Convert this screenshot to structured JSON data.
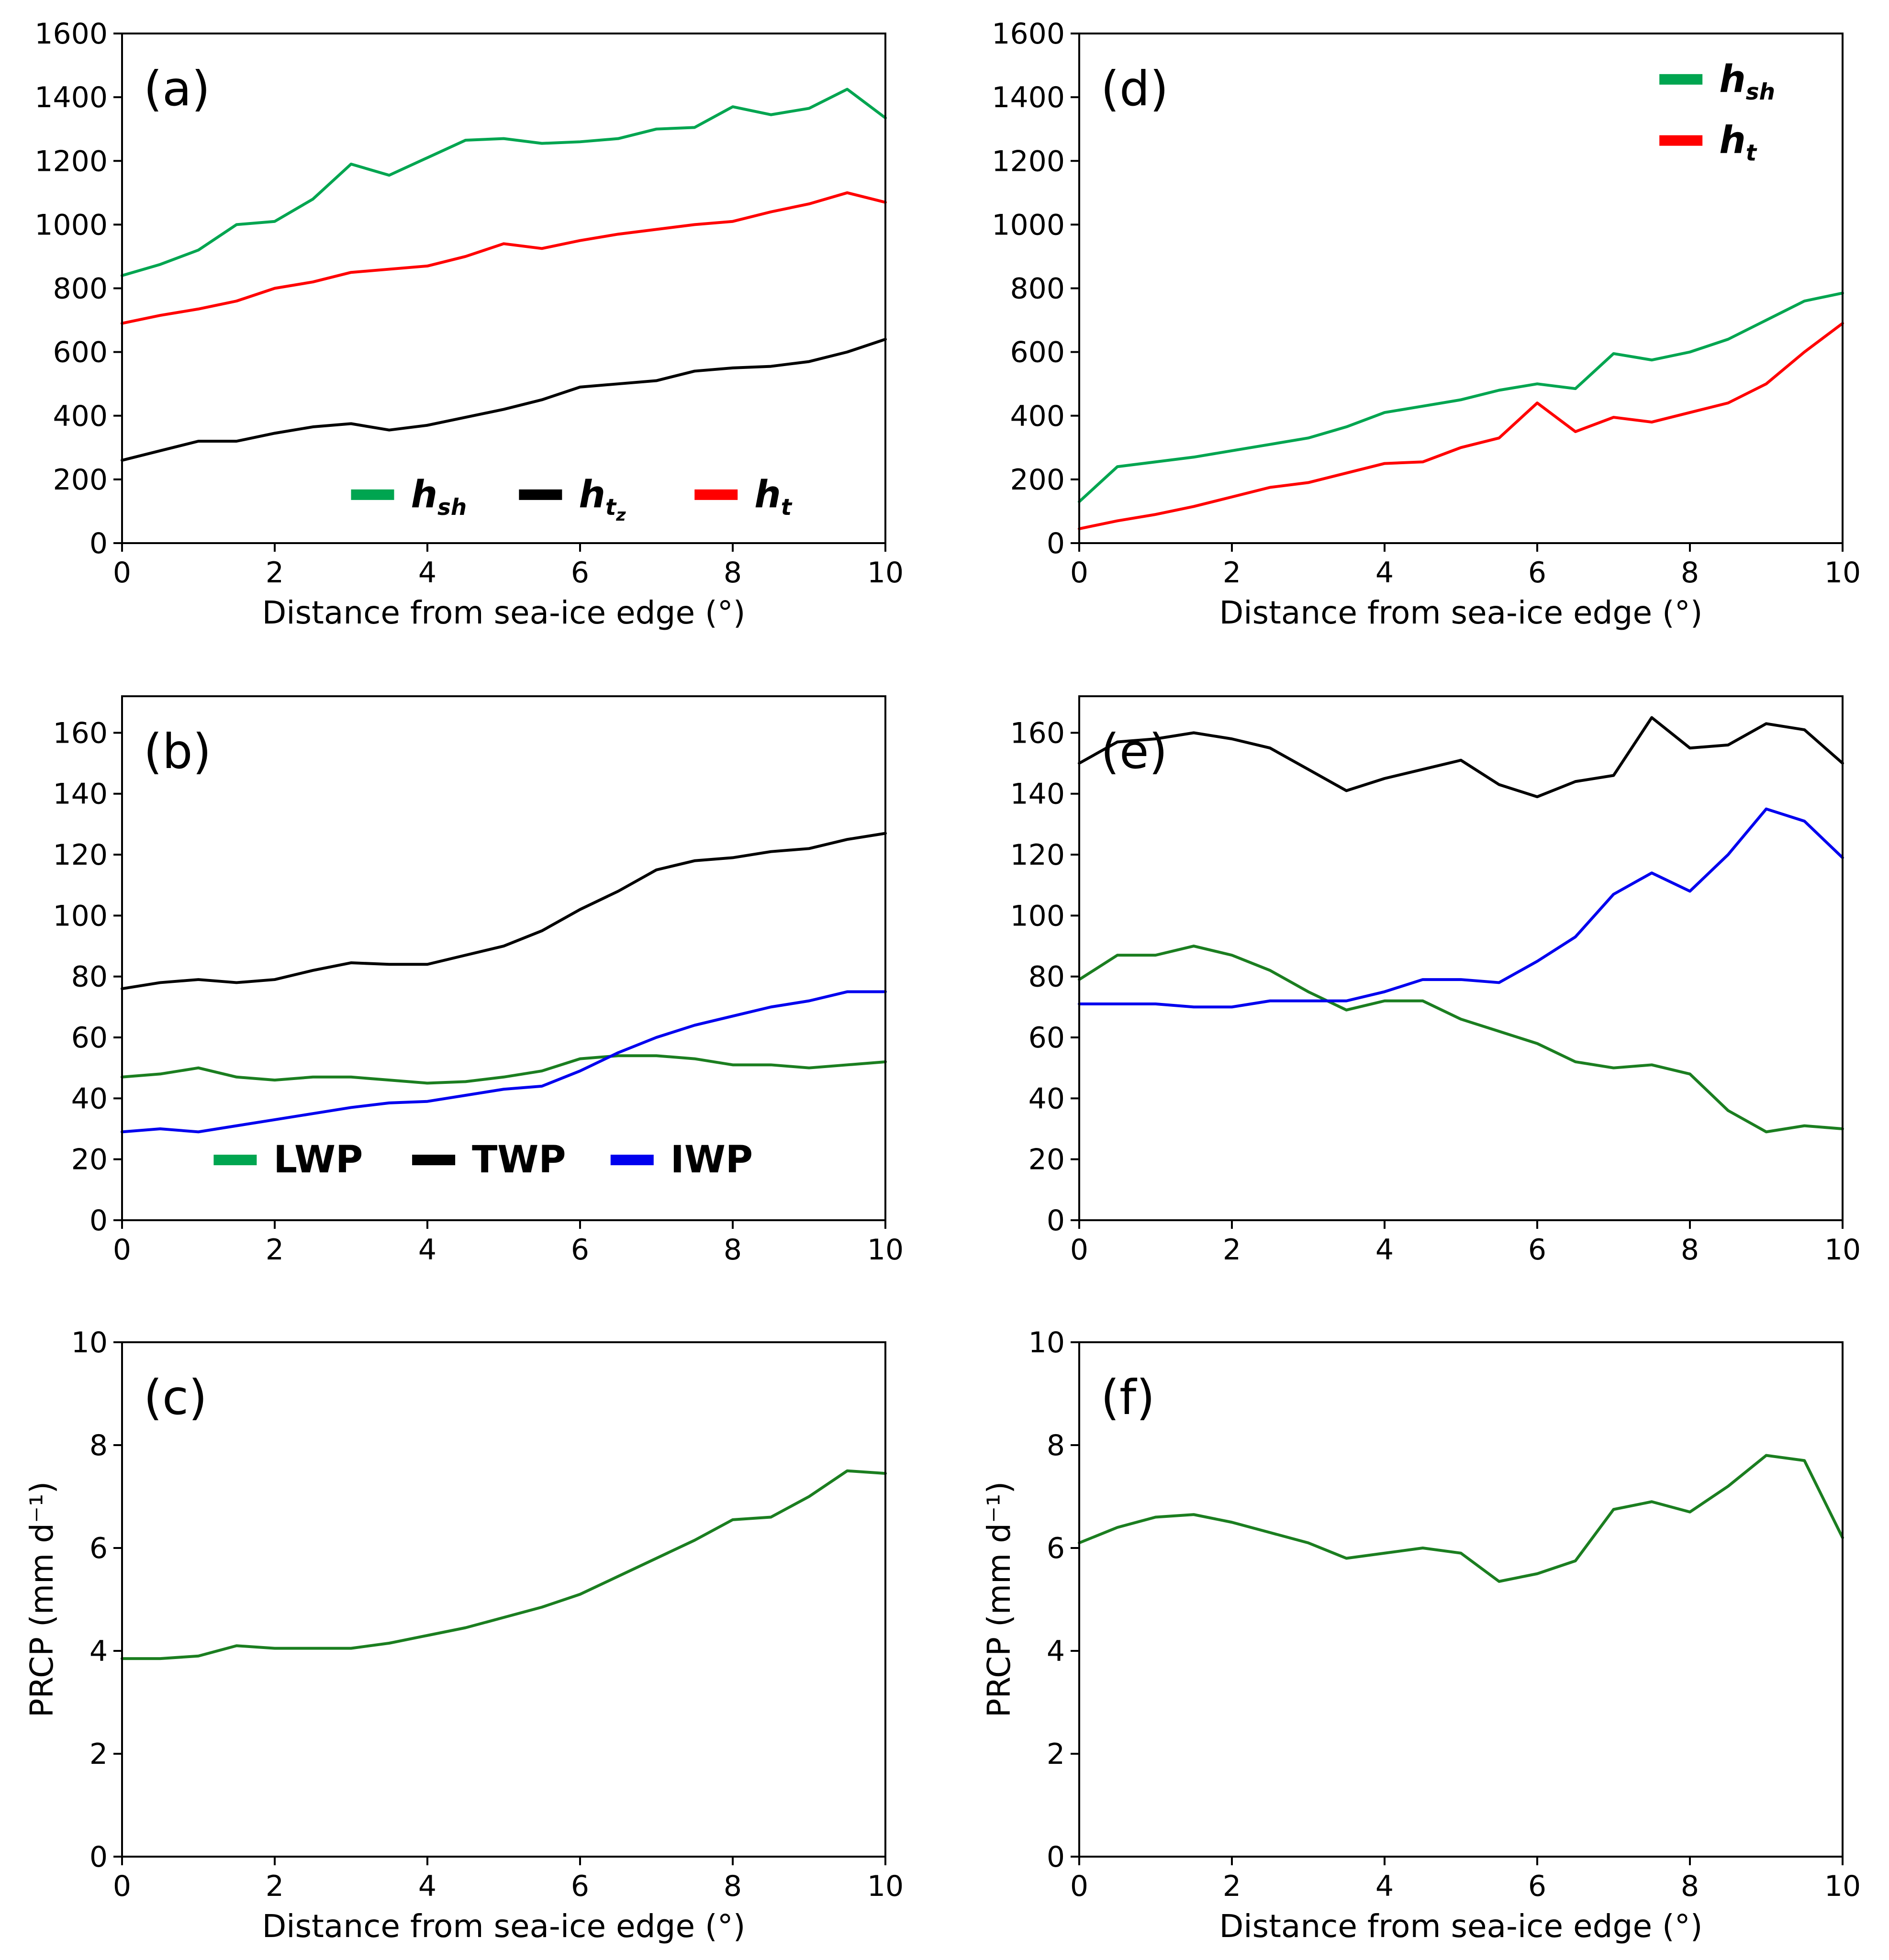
{
  "style": {
    "background": "#ffffff",
    "frame_color": "#000000",
    "tick_color": "#000000",
    "green_bright": "#00A550",
    "green_dark": "#1B7E20",
    "red": "#FF0000",
    "black": "#000000",
    "blue": "#0000EE"
  },
  "chart_data": {
    "type": "line",
    "x": [
      0,
      0.5,
      1,
      1.5,
      2,
      2.5,
      3,
      3.5,
      4,
      4.5,
      5,
      5.5,
      6,
      6.5,
      7,
      7.5,
      8,
      8.5,
      9,
      9.5,
      10
    ],
    "shared_xlabel": "Distance from sea-ice edge (°)",
    "panels": [
      {
        "id": "a",
        "letter": "(a)",
        "xlim": [
          0,
          10
        ],
        "xticks": [
          0,
          2,
          4,
          6,
          8,
          10
        ],
        "ylim": [
          0,
          1600
        ],
        "yticks": [
          0,
          200,
          400,
          600,
          800,
          1000,
          1200,
          1400,
          1600
        ],
        "xlabel": "Distance from sea-ice edge (°)",
        "ylabel": "",
        "series": [
          {
            "name": "h_sh",
            "tex": "h_sh",
            "color": "#00A550",
            "y": [
              840,
              875,
              920,
              1000,
              1010,
              1080,
              1190,
              1155,
              1210,
              1265,
              1270,
              1255,
              1260,
              1270,
              1300,
              1305,
              1370,
              1345,
              1365,
              1425,
              1335
            ]
          },
          {
            "name": "h_t_z",
            "tex": "h_t_z",
            "color": "#000000",
            "y": [
              260,
              290,
              320,
              320,
              345,
              365,
              375,
              355,
              370,
              395,
              420,
              450,
              490,
              500,
              510,
              540,
              550,
              555,
              570,
              600,
              640
            ]
          },
          {
            "name": "h_t",
            "tex": "h_t",
            "color": "#FF0000",
            "y": [
              690,
              715,
              735,
              760,
              800,
              820,
              850,
              860,
              870,
              900,
              940,
              925,
              950,
              970,
              985,
              1000,
              1010,
              1040,
              1065,
              1100,
              1070
            ]
          }
        ],
        "legend": {
          "layout": "row",
          "yfrac": 0.095,
          "xfrac": [
            0.3,
            0.52,
            0.75
          ],
          "entries": [
            {
              "tex": "h_sh",
              "color": "#00A550"
            },
            {
              "tex": "h_t_z",
              "color": "#000000"
            },
            {
              "tex": "h_t",
              "color": "#FF0000"
            }
          ]
        }
      },
      {
        "id": "d",
        "letter": "(d)",
        "xlim": [
          0,
          10
        ],
        "xticks": [
          0,
          2,
          4,
          6,
          8,
          10
        ],
        "ylim": [
          0,
          1600
        ],
        "yticks": [
          0,
          200,
          400,
          600,
          800,
          1000,
          1200,
          1400,
          1600
        ],
        "xlabel": "Distance from sea-ice edge (°)",
        "ylabel": "",
        "series": [
          {
            "name": "h_sh",
            "tex": "h_sh",
            "color": "#00A550",
            "y": [
              130,
              240,
              255,
              270,
              290,
              310,
              330,
              365,
              410,
              430,
              450,
              480,
              500,
              485,
              595,
              575,
              600,
              640,
              700,
              760,
              785
            ]
          },
          {
            "name": "h_t",
            "tex": "h_t",
            "color": "#FF0000",
            "y": [
              45,
              70,
              90,
              115,
              145,
              175,
              190,
              220,
              250,
              255,
              300,
              330,
              440,
              350,
              395,
              380,
              410,
              440,
              500,
              600,
              690
            ]
          }
        ],
        "legend": {
          "layout": "col",
          "xfrac": 0.76,
          "yfrac": [
            0.09,
            0.21
          ],
          "entries": [
            {
              "tex": "h_sh",
              "color": "#00A550"
            },
            {
              "tex": "h_t",
              "color": "#FF0000"
            }
          ]
        }
      },
      {
        "id": "b",
        "letter": "(b)",
        "xlim": [
          0,
          10
        ],
        "xticks": [
          0,
          2,
          4,
          6,
          8,
          10
        ],
        "ylim": [
          0,
          172
        ],
        "yticks": [
          0,
          20,
          40,
          60,
          80,
          100,
          120,
          140,
          160
        ],
        "xlabel": "",
        "ylabel": "",
        "series": [
          {
            "name": "LWP",
            "tex": "LWP",
            "color": "#1B7E20",
            "y": [
              47,
              48,
              50,
              47,
              46,
              47,
              47,
              46,
              45,
              45.5,
              47,
              49,
              53,
              54,
              54,
              53,
              51,
              51,
              50,
              51,
              52
            ]
          },
          {
            "name": "TWP",
            "tex": "TWP",
            "color": "#000000",
            "y": [
              76,
              78,
              79,
              78,
              79,
              82,
              84.5,
              84,
              84,
              87,
              90,
              95,
              102,
              108,
              115,
              118,
              119,
              121,
              122,
              125,
              127
            ]
          },
          {
            "name": "IWP",
            "tex": "IWP",
            "color": "#0000EE",
            "y": [
              29,
              30,
              29,
              31,
              33,
              35,
              37,
              38.5,
              39,
              41,
              43,
              44,
              49,
              55,
              60,
              64,
              67,
              70,
              72,
              75,
              75
            ]
          }
        ],
        "legend": {
          "layout": "row",
          "yfrac": 0.115,
          "xfrac": [
            0.12,
            0.38,
            0.64
          ],
          "entries": [
            {
              "tex": "LWP",
              "color": "#00A550"
            },
            {
              "tex": "TWP",
              "color": "#000000"
            },
            {
              "tex": "IWP",
              "color": "#0000EE"
            }
          ]
        }
      },
      {
        "id": "e",
        "letter": "(e)",
        "xlim": [
          0,
          10
        ],
        "xticks": [
          0,
          2,
          4,
          6,
          8,
          10
        ],
        "ylim": [
          0,
          172
        ],
        "yticks": [
          0,
          20,
          40,
          60,
          80,
          100,
          120,
          140,
          160
        ],
        "xlabel": "",
        "ylabel": "",
        "series": [
          {
            "name": "LWP",
            "tex": "LWP",
            "color": "#1B7E20",
            "y": [
              79,
              87,
              87,
              90,
              87,
              82,
              75,
              69,
              72,
              72,
              66,
              62,
              58,
              52,
              50,
              51,
              48,
              36,
              29,
              31,
              30
            ]
          },
          {
            "name": "TWP",
            "tex": "TWP",
            "color": "#000000",
            "y": [
              150,
              157,
              158,
              160,
              158,
              155,
              148,
              141,
              145,
              148,
              151,
              143,
              139,
              144,
              146,
              165,
              155,
              156,
              163,
              161,
              150
            ]
          },
          {
            "name": "IWP",
            "tex": "IWP",
            "color": "#0000EE",
            "y": [
              71,
              71,
              71,
              70,
              70,
              72,
              72,
              72,
              75,
              79,
              79,
              78,
              85,
              93,
              107,
              114,
              108,
              120,
              135,
              131,
              119
            ]
          }
        ],
        "legend": null
      },
      {
        "id": "c",
        "letter": "(c)",
        "xlim": [
          0,
          10
        ],
        "xticks": [
          0,
          2,
          4,
          6,
          8,
          10
        ],
        "ylim": [
          0,
          10
        ],
        "yticks": [
          0,
          2,
          4,
          6,
          8,
          10
        ],
        "xlabel": "Distance from sea-ice edge (°)",
        "ylabel": "PRCP (mm d⁻¹)",
        "series": [
          {
            "name": "PRCP",
            "tex": "PRCP",
            "color": "#1B7E20",
            "y": [
              3.85,
              3.85,
              3.9,
              4.1,
              4.05,
              4.05,
              4.05,
              4.15,
              4.3,
              4.45,
              4.65,
              4.85,
              5.1,
              5.45,
              5.8,
              6.15,
              6.55,
              6.6,
              7.0,
              7.5,
              7.45
            ]
          }
        ],
        "legend": null
      },
      {
        "id": "f",
        "letter": "(f)",
        "xlim": [
          0,
          10
        ],
        "xticks": [
          0,
          2,
          4,
          6,
          8,
          10
        ],
        "ylim": [
          0,
          10
        ],
        "yticks": [
          0,
          2,
          4,
          6,
          8,
          10
        ],
        "xlabel": "Distance from sea-ice edge (°)",
        "ylabel": "PRCP (mm d⁻¹)",
        "series": [
          {
            "name": "PRCP",
            "tex": "PRCP",
            "color": "#1B7E20",
            "y": [
              6.1,
              6.4,
              6.6,
              6.65,
              6.5,
              6.3,
              6.1,
              5.8,
              5.9,
              6.0,
              5.9,
              5.35,
              5.5,
              5.75,
              6.75,
              6.9,
              6.7,
              7.2,
              7.8,
              7.7,
              6.2
            ]
          }
        ],
        "legend": null
      }
    ]
  }
}
